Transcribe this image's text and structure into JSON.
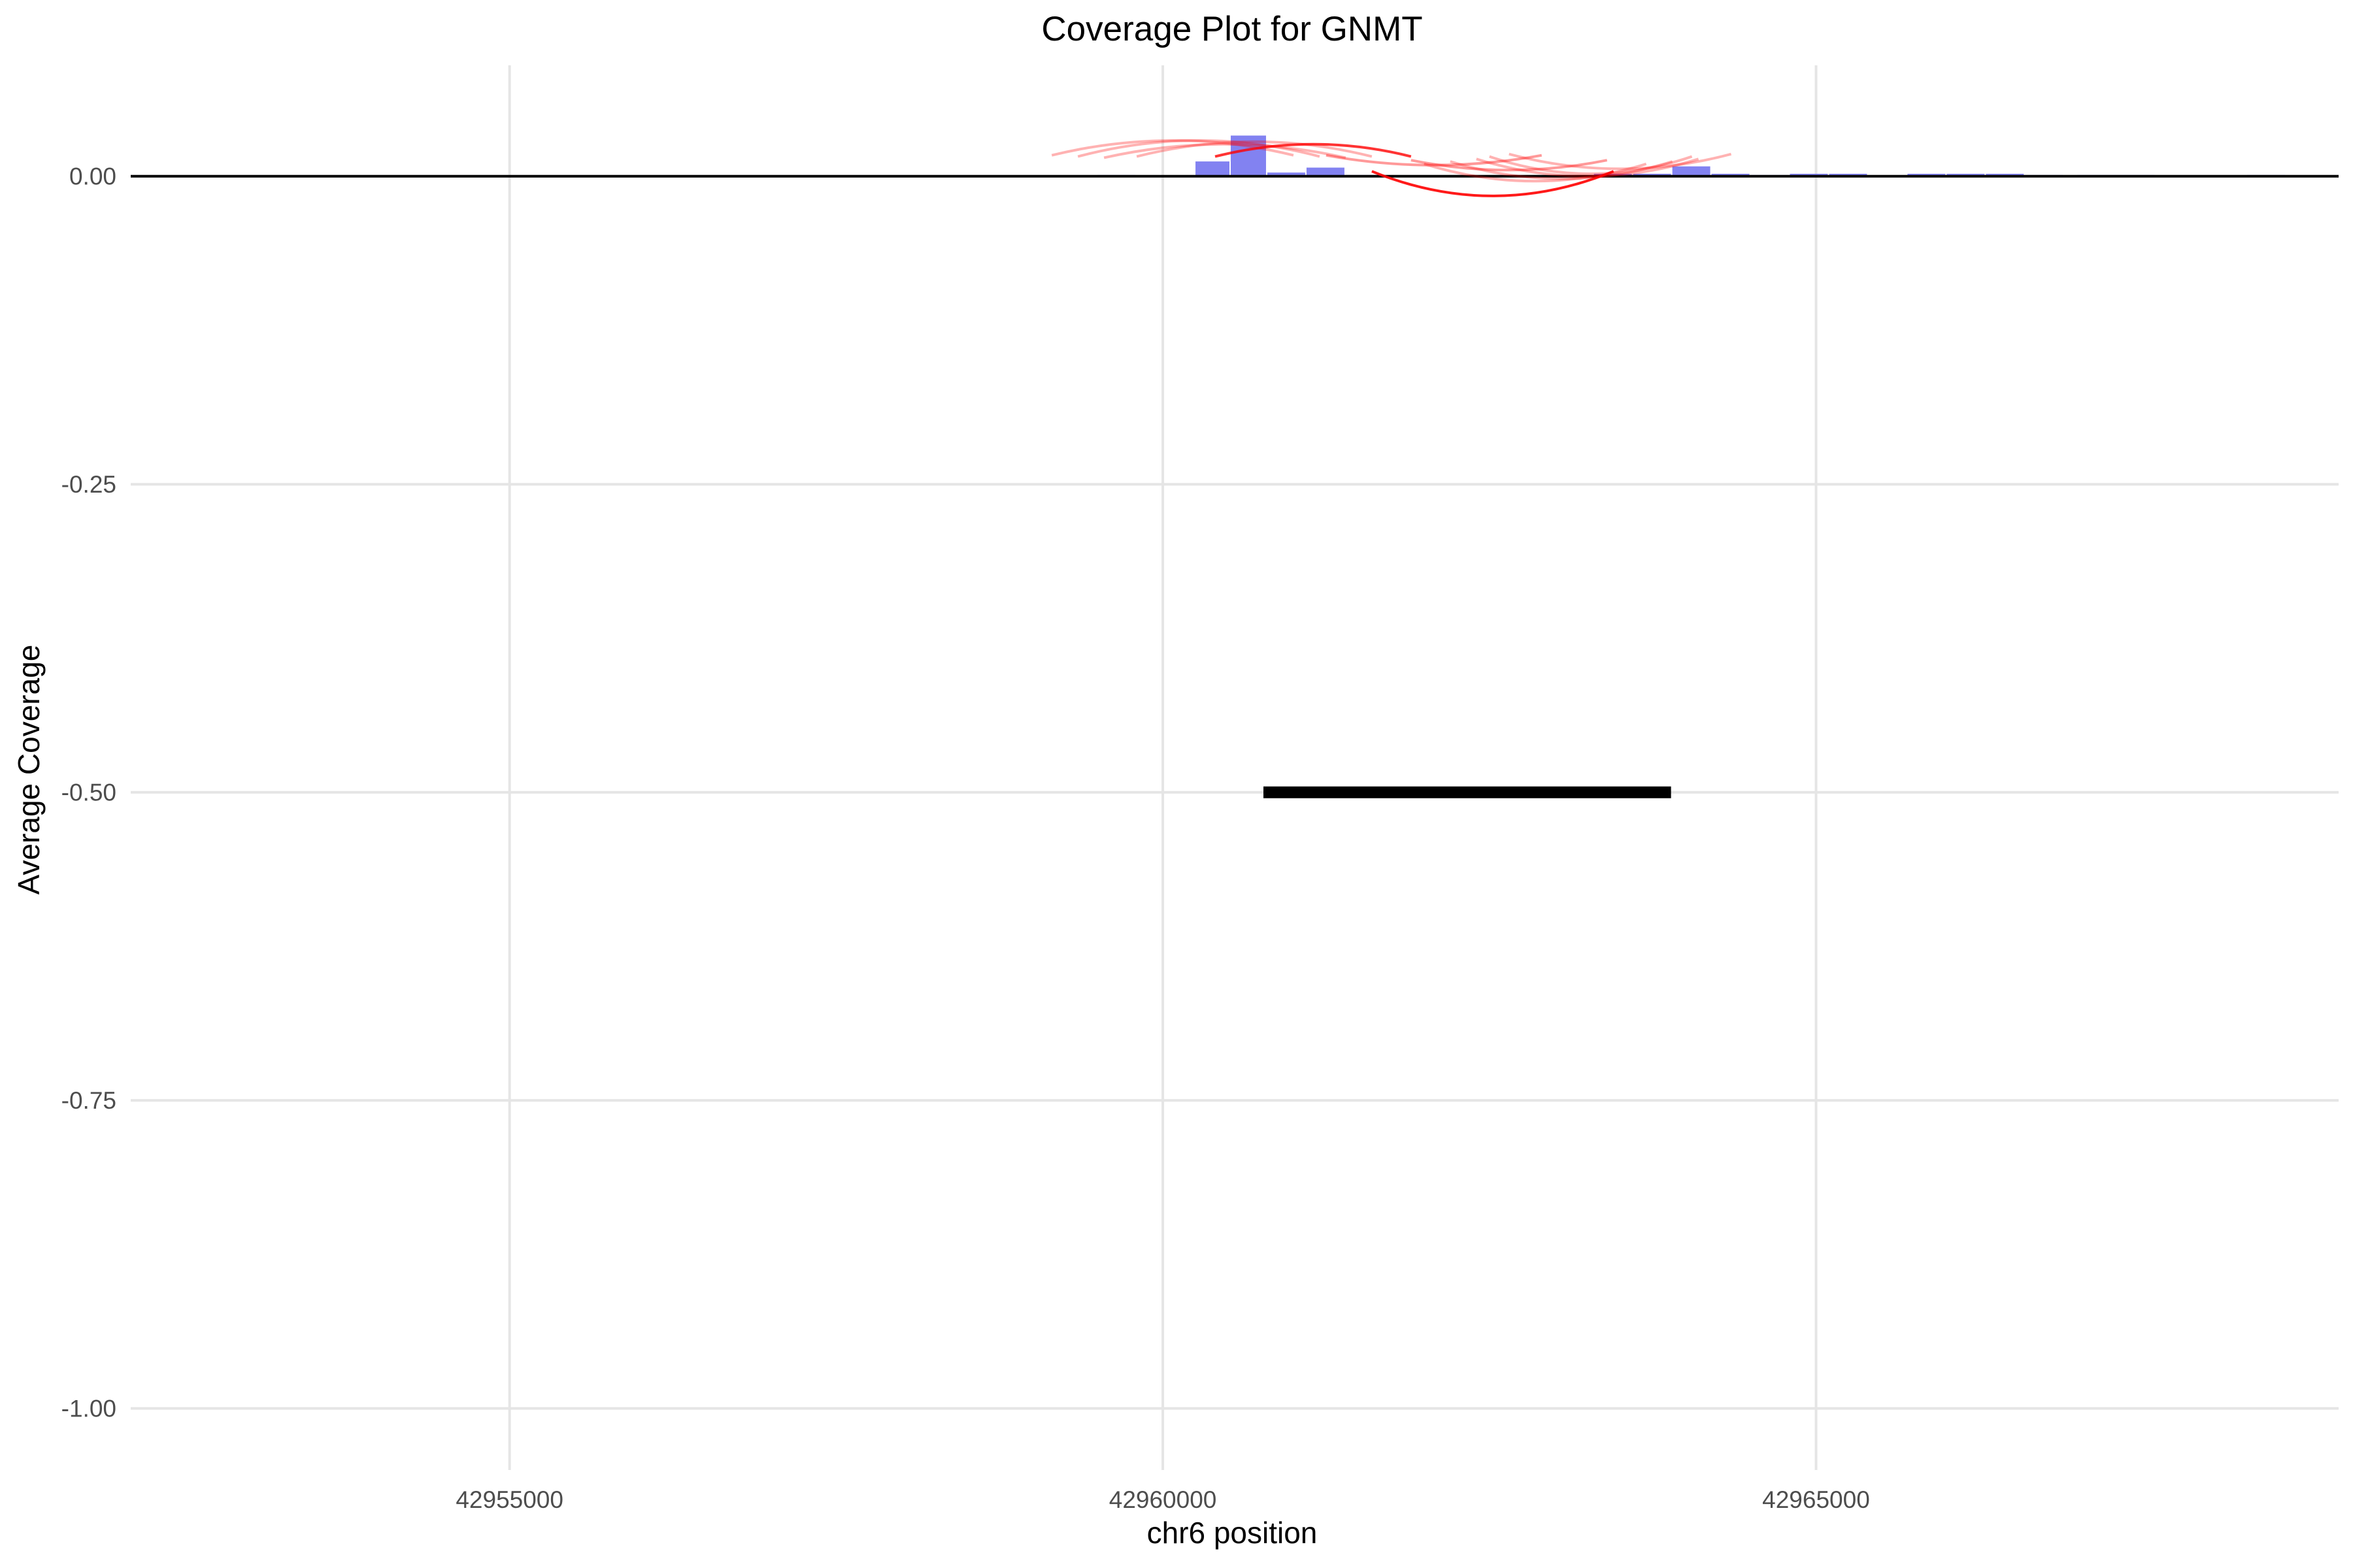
{
  "chart_data": {
    "type": "bar",
    "title": "Coverage Plot for GNMT",
    "xlabel": "chr6 position",
    "ylabel": "Average Coverage",
    "xlim": [
      42952100,
      42969000
    ],
    "ylim": [
      -1.05,
      0.09
    ],
    "x_ticks": [
      42955000,
      42960000,
      42965000
    ],
    "x_tick_labels": [
      "42955000",
      "42960000",
      "42965000"
    ],
    "y_ticks": [
      0.0,
      -0.25,
      -0.5,
      -0.75,
      -1.0
    ],
    "y_tick_labels": [
      "0.00",
      "-0.25",
      "-0.50",
      "-0.75",
      "-1.00"
    ],
    "grid": true,
    "legend": "none",
    "colors": {
      "coverage": "#7b7bf0",
      "arcs": "#ff0000",
      "gene": "#000000",
      "baseline": "#000000"
    },
    "series": [
      {
        "type": "bar",
        "data": [
          {
            "start": 42959500,
            "end": 42959800,
            "value": 0.001
          },
          {
            "start": 42960250,
            "end": 42960520,
            "value": 0.012
          },
          {
            "start": 42960520,
            "end": 42960800,
            "value": 0.033
          },
          {
            "start": 42960800,
            "end": 42961100,
            "value": 0.003
          },
          {
            "start": 42961100,
            "end": 42961400,
            "value": 0.007
          },
          {
            "start": 42961400,
            "end": 42961700,
            "value": 0.001
          },
          {
            "start": 42963300,
            "end": 42963600,
            "value": 0.002
          },
          {
            "start": 42963600,
            "end": 42963900,
            "value": 0.002
          },
          {
            "start": 42963900,
            "end": 42964200,
            "value": 0.008
          },
          {
            "start": 42964200,
            "end": 42964500,
            "value": 0.002
          },
          {
            "start": 42964500,
            "end": 42964800,
            "value": 0.001
          },
          {
            "start": 42964800,
            "end": 42965100,
            "value": 0.002
          },
          {
            "start": 42965100,
            "end": 42965400,
            "value": 0.002
          },
          {
            "start": 42965700,
            "end": 42966000,
            "value": 0.002
          },
          {
            "start": 42966000,
            "end": 42966300,
            "value": 0.002
          },
          {
            "start": 42966300,
            "end": 42966600,
            "value": 0.002
          },
          {
            "start": 42966600,
            "end": 42966900,
            "value": 0.001
          },
          {
            "start": 42967000,
            "end": 42967600,
            "value": 0.001
          },
          {
            "start": 42968300,
            "end": 42968600,
            "value": 0.001
          }
        ]
      },
      {
        "type": "arcs",
        "data": [
          {
            "x1": 42959150,
            "x2": 42961000,
            "y": 0.017,
            "depth": -0.012,
            "alpha": 0.3
          },
          {
            "x1": 42959350,
            "x2": 42961200,
            "y": 0.016,
            "depth": -0.013,
            "alpha": 0.3
          },
          {
            "x1": 42959550,
            "x2": 42961400,
            "y": 0.015,
            "depth": -0.011,
            "alpha": 0.3
          },
          {
            "x1": 42959800,
            "x2": 42961600,
            "y": 0.016,
            "depth": -0.012,
            "alpha": 0.3
          },
          {
            "x1": 42960400,
            "x2": 42961900,
            "y": 0.016,
            "depth": -0.01,
            "alpha": 0.8
          },
          {
            "x1": 42961250,
            "x2": 42962900,
            "y": 0.017,
            "depth": 0.008,
            "alpha": 0.4
          },
          {
            "x1": 42961900,
            "x2": 42963400,
            "y": 0.013,
            "depth": 0.008,
            "alpha": 0.4
          },
          {
            "x1": 42962000,
            "x2": 42963700,
            "y": 0.01,
            "depth": 0.014,
            "alpha": 0.3
          },
          {
            "x1": 42962200,
            "x2": 42963900,
            "y": 0.012,
            "depth": 0.014,
            "alpha": 0.3
          },
          {
            "x1": 42962400,
            "x2": 42964100,
            "y": 0.014,
            "depth": 0.014,
            "alpha": 0.3
          },
          {
            "x1": 42962650,
            "x2": 42964350,
            "y": 0.018,
            "depth": 0.012,
            "alpha": 0.3
          },
          {
            "x1": 42962500,
            "x2": 42964050,
            "y": 0.016,
            "depth": 0.014,
            "alpha": 0.3
          },
          {
            "x1": 42961600,
            "x2": 42963450,
            "y": 0.004,
            "depth": 0.02,
            "alpha": 0.9
          }
        ]
      },
      {
        "type": "gene_segment",
        "data": [
          {
            "start": 42960770,
            "end": 42963890,
            "y": -0.5
          }
        ]
      }
    ]
  }
}
